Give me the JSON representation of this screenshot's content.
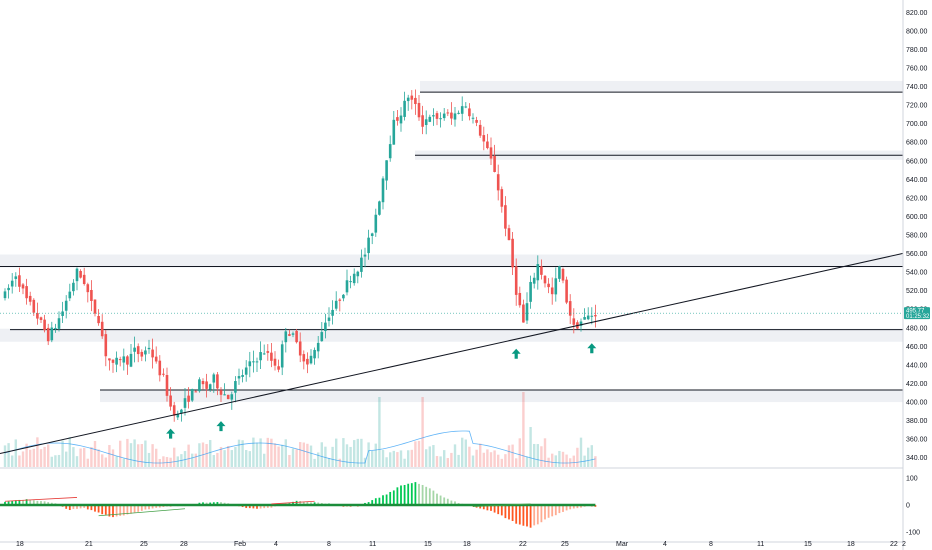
{
  "chart_data": [
    {
      "type": "candlestick",
      "title": "",
      "x_tick_labels": [
        "18",
        "21",
        "25",
        "28",
        "Feb",
        "4",
        "8",
        "11",
        "15",
        "18",
        "22",
        "25",
        "Mar",
        "4",
        "8",
        "11",
        "15",
        "18",
        "22",
        "2"
      ],
      "y_tick_labels": [
        "820.00",
        "800.00",
        "780.00",
        "760.00",
        "740.00",
        "720.00",
        "700.00",
        "680.00",
        "660.00",
        "640.00",
        "620.00",
        "600.00",
        "580.00",
        "560.00",
        "540.00",
        "520.00",
        "500.00",
        "480.00",
        "460.00",
        "440.00",
        "420.00",
        "400.00",
        "380.00",
        "360.00",
        "340.00"
      ],
      "ylim": [
        330,
        830
      ],
      "last_price_label": "495.77",
      "countdown_label": "01:25:32",
      "price_path": [
        [
          0,
          515
        ],
        [
          3,
          538
        ],
        [
          6,
          510
        ],
        [
          9,
          492
        ],
        [
          12,
          470
        ],
        [
          14,
          482
        ],
        [
          16,
          498
        ],
        [
          18,
          520
        ],
        [
          20,
          540
        ],
        [
          22,
          530
        ],
        [
          24,
          505
        ],
        [
          26,
          490
        ],
        [
          28,
          452
        ],
        [
          30,
          438
        ],
        [
          32,
          448
        ],
        [
          34,
          445
        ],
        [
          36,
          455
        ],
        [
          38,
          450
        ],
        [
          40,
          460
        ],
        [
          42,
          440
        ],
        [
          44,
          425
        ],
        [
          46,
          395
        ],
        [
          48,
          385
        ],
        [
          50,
          400
        ],
        [
          52,
          410
        ],
        [
          54,
          420
        ],
        [
          56,
          415
        ],
        [
          58,
          425
        ],
        [
          60,
          412
        ],
        [
          62,
          405
        ],
        [
          64,
          420
        ],
        [
          66,
          430
        ],
        [
          68,
          440
        ],
        [
          70,
          448
        ],
        [
          72,
          455
        ],
        [
          74,
          445
        ],
        [
          76,
          438
        ],
        [
          78,
          480
        ],
        [
          80,
          470
        ],
        [
          82,
          455
        ],
        [
          84,
          440
        ],
        [
          86,
          455
        ],
        [
          88,
          478
        ],
        [
          90,
          495
        ],
        [
          92,
          505
        ],
        [
          94,
          520
        ],
        [
          96,
          535
        ],
        [
          98,
          545
        ],
        [
          100,
          560
        ],
        [
          102,
          585
        ],
        [
          104,
          620
        ],
        [
          106,
          665
        ],
        [
          108,
          700
        ],
        [
          110,
          712
        ],
        [
          112,
          730
        ],
        [
          114,
          718
        ],
        [
          116,
          700
        ],
        [
          118,
          710
        ],
        [
          120,
          702
        ],
        [
          122,
          712
        ],
        [
          124,
          705
        ],
        [
          126,
          715
        ],
        [
          128,
          720
        ],
        [
          130,
          705
        ],
        [
          132,
          690
        ],
        [
          134,
          670
        ],
        [
          136,
          650
        ],
        [
          138,
          610
        ],
        [
          140,
          570
        ],
        [
          142,
          520
        ],
        [
          144,
          485
        ],
        [
          146,
          525
        ],
        [
          148,
          548
        ],
        [
          150,
          530
        ],
        [
          152,
          515
        ],
        [
          154,
          545
        ],
        [
          156,
          510
        ],
        [
          158,
          480
        ],
        [
          160,
          487
        ],
        [
          162,
          492
        ],
        [
          164,
          495.77
        ]
      ],
      "horizontal_levels": [
        {
          "price": 734,
          "zone": [
            734,
            746
          ]
        },
        {
          "price": 666,
          "zone": [
            661,
            671
          ]
        },
        {
          "price": 546,
          "zone": [
            545,
            559
          ]
        },
        {
          "price": 478,
          "zone": [
            465,
            479
          ]
        },
        {
          "price": 413,
          "zone": [
            400,
            413
          ]
        }
      ],
      "trendline": {
        "from": [
          -30,
          320
        ],
        "to": [
          290,
          595
        ]
      },
      "signal_arrows": [
        {
          "x": 46,
          "price": 366
        },
        {
          "x": 60,
          "price": 374
        },
        {
          "x": 142,
          "price": 452
        },
        {
          "x": 163,
          "price": 458
        }
      ],
      "colors": {
        "up": "#26a69a",
        "down": "#ef5350",
        "arrow": "#089981",
        "last_price": "#26a69a",
        "volume_ma": "#2196f3"
      }
    },
    {
      "type": "bar",
      "title": "",
      "y_tick_labels": [
        "100",
        "0",
        "-100"
      ],
      "ylim": [
        -130,
        130
      ],
      "oscillator_path": [
        [
          0,
          10
        ],
        [
          6,
          22
        ],
        [
          10,
          15
        ],
        [
          14,
          5
        ],
        [
          18,
          -18
        ],
        [
          22,
          -12
        ],
        [
          26,
          -28
        ],
        [
          30,
          -45
        ],
        [
          34,
          -35
        ],
        [
          38,
          -20
        ],
        [
          42,
          -12
        ],
        [
          46,
          -5
        ],
        [
          50,
          -2
        ],
        [
          54,
          8
        ],
        [
          58,
          12
        ],
        [
          62,
          5
        ],
        [
          66,
          -8
        ],
        [
          70,
          -14
        ],
        [
          74,
          -10
        ],
        [
          78,
          6
        ],
        [
          82,
          16
        ],
        [
          86,
          10
        ],
        [
          90,
          4
        ],
        [
          94,
          -6
        ],
        [
          98,
          -4
        ],
        [
          102,
          18
        ],
        [
          106,
          40
        ],
        [
          110,
          72
        ],
        [
          114,
          85
        ],
        [
          118,
          60
        ],
        [
          122,
          28
        ],
        [
          126,
          8
        ],
        [
          130,
          -5
        ],
        [
          134,
          -18
        ],
        [
          138,
          -40
        ],
        [
          142,
          -68
        ],
        [
          146,
          -85
        ],
        [
          150,
          -55
        ],
        [
          154,
          -30
        ],
        [
          158,
          -12
        ],
        [
          162,
          -4
        ],
        [
          164,
          -8
        ]
      ]
    }
  ]
}
